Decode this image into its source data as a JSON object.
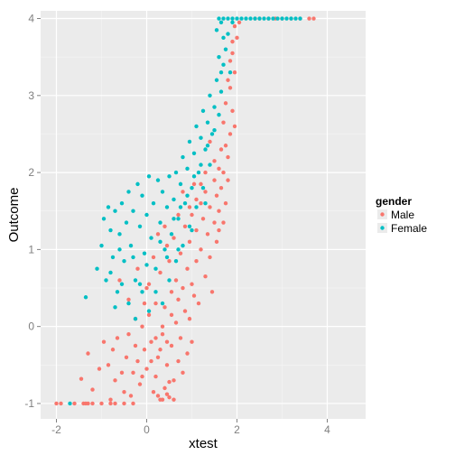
{
  "chart_data": {
    "type": "scatter",
    "xlabel": "xtest",
    "ylabel": "Outcome",
    "xlim": [
      -2.35,
      4.85
    ],
    "ylim": [
      -1.2,
      4.1
    ],
    "x_ticks": [
      -2,
      0,
      2,
      4
    ],
    "y_ticks": [
      -1,
      0,
      1,
      2,
      3,
      4
    ],
    "x_tick_labels": [
      "-2",
      "0",
      "2",
      "4"
    ],
    "y_tick_labels": [
      "-1",
      "0",
      "1",
      "2",
      "3",
      "4"
    ],
    "grid": true,
    "legend": {
      "title": "gender",
      "position": "right"
    },
    "series": [
      {
        "name": "Male",
        "color": "#F8766D",
        "points": [
          [
            -2.0,
            -1.0
          ],
          [
            -1.9,
            -1.0
          ],
          [
            -1.6,
            -1.0
          ],
          [
            -1.4,
            -1.0
          ],
          [
            -1.35,
            -1.0
          ],
          [
            -1.3,
            -1.0
          ],
          [
            -1.2,
            -1.0
          ],
          [
            -1.0,
            -1.0
          ],
          [
            -0.8,
            -1.0
          ],
          [
            -0.7,
            -1.0
          ],
          [
            -0.5,
            -1.0
          ],
          [
            -0.3,
            -1.0
          ],
          [
            -1.45,
            -0.68
          ],
          [
            -1.2,
            -0.82
          ],
          [
            -1.05,
            -0.55
          ],
          [
            -1.3,
            -0.35
          ],
          [
            -0.95,
            -0.2
          ],
          [
            -0.85,
            -0.5
          ],
          [
            -0.8,
            -0.95
          ],
          [
            -0.7,
            -0.7
          ],
          [
            -0.75,
            -0.3
          ],
          [
            -0.65,
            -0.15
          ],
          [
            -0.55,
            -0.6
          ],
          [
            -0.5,
            -0.85
          ],
          [
            -0.45,
            -0.4
          ],
          [
            -0.4,
            -0.1
          ],
          [
            -0.35,
            -0.9
          ],
          [
            -0.3,
            -0.6
          ],
          [
            -0.25,
            0.1
          ],
          [
            -0.2,
            -0.45
          ],
          [
            -0.15,
            -0.75
          ],
          [
            -0.1,
            0.0
          ],
          [
            -0.05,
            -0.3
          ],
          [
            0.0,
            -0.55
          ],
          [
            0.05,
            0.15
          ],
          [
            0.1,
            -0.2
          ],
          [
            0.15,
            -0.85
          ],
          [
            0.2,
            -0.65
          ],
          [
            0.25,
            -0.4
          ],
          [
            0.3,
            -0.95
          ],
          [
            0.35,
            -0.1
          ],
          [
            0.4,
            -0.8
          ],
          [
            0.45,
            -0.5
          ],
          [
            0.5,
            -0.92
          ],
          [
            0.55,
            -0.25
          ],
          [
            0.6,
            -0.7
          ],
          [
            0.65,
            0.05
          ],
          [
            0.7,
            -0.45
          ],
          [
            0.75,
            -0.15
          ],
          [
            0.8,
            -0.6
          ],
          [
            0.85,
            0.2
          ],
          [
            0.9,
            -0.35
          ],
          [
            0.95,
            0.1
          ],
          [
            1.0,
            -0.2
          ],
          [
            1.05,
            0.4
          ],
          [
            0.25,
            -0.9
          ],
          [
            0.35,
            -0.95
          ],
          [
            0.45,
            -0.88
          ],
          [
            0.5,
            -0.72
          ],
          [
            0.6,
            -0.95
          ],
          [
            0.3,
            -0.3
          ],
          [
            0.4,
            0.25
          ],
          [
            0.2,
            0.3
          ],
          [
            0.55,
            0.45
          ],
          [
            0.65,
            0.6
          ],
          [
            0.7,
            0.35
          ],
          [
            0.8,
            0.5
          ],
          [
            0.9,
            0.75
          ],
          [
            1.0,
            0.55
          ],
          [
            1.1,
            0.85
          ],
          [
            1.15,
            0.3
          ],
          [
            1.2,
            1.0
          ],
          [
            1.3,
            0.65
          ],
          [
            1.35,
            1.2
          ],
          [
            1.4,
            0.9
          ],
          [
            1.5,
            1.35
          ],
          [
            1.45,
            0.45
          ],
          [
            1.55,
            1.1
          ],
          [
            1.6,
            1.5
          ],
          [
            1.65,
            1.8
          ],
          [
            1.6,
            1.25
          ],
          [
            1.7,
            2.0
          ],
          [
            1.75,
            1.6
          ],
          [
            1.8,
            2.2
          ],
          [
            1.85,
            2.5
          ],
          [
            1.8,
            1.9
          ],
          [
            1.9,
            2.8
          ],
          [
            1.85,
            3.1
          ],
          [
            1.95,
            3.3
          ],
          [
            1.9,
            3.55
          ],
          [
            2.0,
            3.75
          ],
          [
            1.95,
            2.6
          ],
          [
            1.7,
            1.35
          ],
          [
            1.75,
            2.35
          ],
          [
            -0.6,
            0.6
          ],
          [
            -0.4,
            0.35
          ],
          [
            -0.2,
            0.75
          ],
          [
            0.0,
            0.5
          ],
          [
            0.15,
            0.9
          ],
          [
            0.3,
            0.7
          ],
          [
            0.45,
            1.05
          ],
          [
            0.5,
            0.85
          ],
          [
            0.6,
            1.15
          ],
          [
            0.75,
            0.95
          ],
          [
            0.85,
            1.3
          ],
          [
            0.95,
            1.1
          ],
          [
            1.0,
            1.45
          ],
          [
            1.1,
            1.25
          ],
          [
            1.2,
            1.6
          ],
          [
            1.25,
            1.4
          ],
          [
            1.3,
            1.75
          ],
          [
            1.4,
            1.55
          ],
          [
            1.5,
            1.9
          ],
          [
            1.55,
            1.7
          ],
          [
            1.6,
            2.05
          ],
          [
            1.65,
            2.3
          ],
          [
            1.7,
            2.65
          ],
          [
            1.75,
            2.9
          ],
          [
            1.8,
            3.2
          ],
          [
            1.85,
            3.45
          ],
          [
            1.9,
            3.7
          ],
          [
            1.95,
            3.9
          ],
          [
            2.05,
            3.95
          ],
          [
            1.4,
            2.4
          ],
          [
            1.5,
            2.15
          ],
          [
            1.3,
            2.0
          ],
          [
            1.2,
            1.85
          ],
          [
            1.1,
            1.65
          ],
          [
            0.35,
            0.0
          ],
          [
            0.45,
            -0.2
          ],
          [
            0.55,
            0.15
          ],
          [
            0.1,
            -0.45
          ],
          [
            0.2,
            -0.15
          ],
          [
            -0.1,
            -0.65
          ],
          [
            -0.25,
            -0.25
          ],
          [
            0.05,
            0.55
          ],
          [
            0.25,
            1.2
          ],
          [
            0.4,
            1.3
          ],
          [
            -0.05,
            0.3
          ],
          [
            0.7,
            1.45
          ],
          [
            0.8,
            1.75
          ],
          [
            0.95,
            1.55
          ],
          [
            1.05,
            1.85
          ],
          [
            2.4,
            4.0
          ],
          [
            2.5,
            4.0
          ],
          [
            2.7,
            4.0
          ],
          [
            2.85,
            4.0
          ],
          [
            3.0,
            4.0
          ],
          [
            3.2,
            4.0
          ],
          [
            3.4,
            4.0
          ],
          [
            3.6,
            4.0
          ],
          [
            3.7,
            4.0
          ]
        ]
      },
      {
        "name": "Female",
        "color": "#00BFC4",
        "points": [
          [
            -1.7,
            -1.0
          ],
          [
            -1.35,
            0.38
          ],
          [
            -1.1,
            0.75
          ],
          [
            -1.0,
            1.05
          ],
          [
            -0.95,
            1.4
          ],
          [
            -0.9,
            0.6
          ],
          [
            -0.85,
            1.55
          ],
          [
            -0.8,
            1.25
          ],
          [
            -0.75,
            0.9
          ],
          [
            -0.7,
            1.5
          ],
          [
            -0.65,
            0.45
          ],
          [
            -0.6,
            1.2
          ],
          [
            -0.55,
            1.6
          ],
          [
            -0.5,
            0.85
          ],
          [
            -0.45,
            1.35
          ],
          [
            -0.4,
            1.75
          ],
          [
            -0.35,
            1.05
          ],
          [
            -0.3,
            1.5
          ],
          [
            -0.25,
            0.6
          ],
          [
            -0.2,
            1.85
          ],
          [
            -0.15,
            1.3
          ],
          [
            -0.1,
            1.7
          ],
          [
            -0.05,
            0.95
          ],
          [
            0.0,
            1.45
          ],
          [
            0.05,
            1.95
          ],
          [
            0.1,
            1.15
          ],
          [
            0.15,
            1.6
          ],
          [
            0.2,
            0.75
          ],
          [
            0.25,
            1.9
          ],
          [
            0.3,
            1.35
          ],
          [
            0.35,
            1.75
          ],
          [
            0.4,
            1.0
          ],
          [
            0.45,
            1.55
          ],
          [
            0.5,
            1.95
          ],
          [
            0.55,
            1.2
          ],
          [
            0.6,
            1.65
          ],
          [
            0.65,
            2.0
          ],
          [
            0.7,
            1.4
          ],
          [
            0.75,
            1.85
          ],
          [
            0.8,
            2.2
          ],
          [
            0.85,
            1.6
          ],
          [
            0.9,
            2.05
          ],
          [
            0.95,
            2.4
          ],
          [
            1.0,
            1.8
          ],
          [
            1.05,
            2.25
          ],
          [
            1.1,
            2.6
          ],
          [
            1.15,
            2.0
          ],
          [
            1.2,
            2.45
          ],
          [
            1.25,
            2.8
          ],
          [
            1.3,
            2.3
          ],
          [
            1.35,
            2.65
          ],
          [
            1.4,
            3.0
          ],
          [
            1.45,
            2.5
          ],
          [
            1.5,
            2.85
          ],
          [
            1.55,
            3.2
          ],
          [
            1.6,
            2.75
          ],
          [
            1.65,
            3.05
          ],
          [
            1.7,
            3.4
          ],
          [
            1.75,
            3.6
          ],
          [
            1.8,
            3.8
          ],
          [
            1.85,
            3.3
          ],
          [
            1.9,
            3.95
          ],
          [
            1.7,
            3.75
          ],
          [
            1.6,
            3.5
          ],
          [
            1.55,
            3.85
          ],
          [
            1.65,
            3.95
          ],
          [
            -0.7,
            0.25
          ],
          [
            -0.55,
            0.55
          ],
          [
            -0.4,
            0.3
          ],
          [
            -0.25,
            0.1
          ],
          [
            -0.1,
            0.45
          ],
          [
            0.05,
            0.2
          ],
          [
            0.2,
            0.45
          ],
          [
            0.35,
            0.3
          ],
          [
            0.5,
            0.6
          ],
          [
            0.65,
            0.85
          ],
          [
            0.8,
            1.05
          ],
          [
            0.95,
            1.3
          ],
          [
            1.1,
            1.55
          ],
          [
            1.25,
            1.8
          ],
          [
            1.4,
            2.1
          ],
          [
            0.0,
            0.8
          ],
          [
            0.3,
            1.1
          ],
          [
            0.6,
            1.4
          ],
          [
            0.9,
            1.7
          ],
          [
            1.2,
            2.1
          ],
          [
            1.5,
            2.55
          ],
          [
            1.3,
            1.6
          ],
          [
            1.0,
            1.25
          ],
          [
            0.7,
            1.0
          ],
          [
            -0.3,
            0.9
          ],
          [
            -0.6,
            1.0
          ],
          [
            -0.8,
            0.7
          ],
          [
            -0.15,
            0.55
          ],
          [
            0.45,
            0.9
          ],
          [
            0.75,
            1.55
          ],
          [
            1.05,
            1.95
          ],
          [
            1.35,
            2.35
          ],
          [
            1.65,
            3.3
          ],
          [
            1.6,
            4.0
          ],
          [
            1.7,
            4.0
          ],
          [
            1.8,
            4.0
          ],
          [
            1.9,
            4.0
          ],
          [
            2.0,
            4.0
          ],
          [
            2.1,
            4.0
          ],
          [
            2.2,
            4.0
          ],
          [
            2.3,
            4.0
          ],
          [
            2.4,
            4.0
          ],
          [
            2.5,
            4.0
          ],
          [
            2.6,
            4.0
          ],
          [
            2.7,
            4.0
          ],
          [
            2.8,
            4.0
          ],
          [
            2.9,
            4.0
          ],
          [
            3.0,
            4.0
          ],
          [
            3.1,
            4.0
          ],
          [
            3.2,
            4.0
          ],
          [
            3.3,
            4.0
          ],
          [
            3.4,
            4.0
          ]
        ]
      }
    ]
  }
}
